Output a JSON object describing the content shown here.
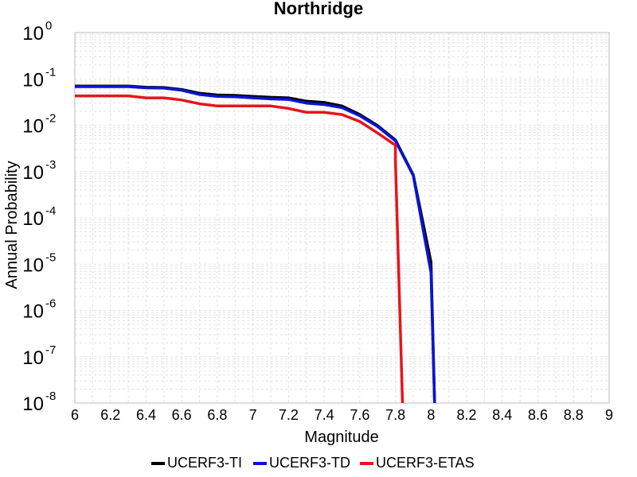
{
  "chart_data": {
    "type": "line",
    "title": "Northridge",
    "xlabel": "Magnitude",
    "ylabel": "Annual Probability",
    "xlim": [
      6,
      9
    ],
    "ylim": [
      1e-08,
      1
    ],
    "yscale": "log",
    "grid": true,
    "legend_position": "bottom",
    "x_ticks": [
      "6",
      "6.2",
      "6.4",
      "6.6",
      "6.8",
      "7",
      "7.2",
      "7.4",
      "7.6",
      "7.8",
      "8",
      "8.2",
      "8.4",
      "8.6",
      "8.8",
      "9"
    ],
    "y_ticks": [
      {
        "base": "10",
        "exp": "0"
      },
      {
        "base": "10",
        "exp": "-1"
      },
      {
        "base": "10",
        "exp": "-2"
      },
      {
        "base": "10",
        "exp": "-3"
      },
      {
        "base": "10",
        "exp": "-4"
      },
      {
        "base": "10",
        "exp": "-5"
      },
      {
        "base": "10",
        "exp": "-6"
      },
      {
        "base": "10",
        "exp": "-7"
      },
      {
        "base": "10",
        "exp": "-8"
      }
    ],
    "series": [
      {
        "name": "UCERF3-TI",
        "color": "#000000",
        "points": [
          [
            6.0,
            0.07
          ],
          [
            6.1,
            0.07
          ],
          [
            6.2,
            0.07
          ],
          [
            6.3,
            0.07
          ],
          [
            6.4,
            0.066
          ],
          [
            6.5,
            0.065
          ],
          [
            6.6,
            0.059
          ],
          [
            6.7,
            0.049
          ],
          [
            6.8,
            0.045
          ],
          [
            6.9,
            0.044
          ],
          [
            7.0,
            0.042
          ],
          [
            7.1,
            0.04
          ],
          [
            7.2,
            0.039
          ],
          [
            7.3,
            0.033
          ],
          [
            7.4,
            0.031
          ],
          [
            7.5,
            0.026
          ],
          [
            7.6,
            0.017
          ],
          [
            7.7,
            0.0098
          ],
          [
            7.8,
            0.0048
          ],
          [
            7.9,
            0.00085
          ],
          [
            8.0,
            1.1e-05
          ],
          [
            8.02,
            1e-08
          ]
        ]
      },
      {
        "name": "UCERF3-TD",
        "color": "#0a14d2",
        "points": [
          [
            6.0,
            0.068
          ],
          [
            6.1,
            0.068
          ],
          [
            6.2,
            0.068
          ],
          [
            6.3,
            0.068
          ],
          [
            6.4,
            0.064
          ],
          [
            6.5,
            0.063
          ],
          [
            6.6,
            0.057
          ],
          [
            6.7,
            0.046
          ],
          [
            6.8,
            0.042
          ],
          [
            6.9,
            0.041
          ],
          [
            7.0,
            0.039
          ],
          [
            7.1,
            0.037
          ],
          [
            7.2,
            0.036
          ],
          [
            7.3,
            0.03
          ],
          [
            7.4,
            0.028
          ],
          [
            7.5,
            0.024
          ],
          [
            7.6,
            0.016
          ],
          [
            7.7,
            0.0094
          ],
          [
            7.8,
            0.0046
          ],
          [
            7.9,
            0.00082
          ],
          [
            8.0,
            6.5e-06
          ],
          [
            8.02,
            1e-08
          ]
        ]
      },
      {
        "name": "UCERF3-ETAS",
        "color": "#e8141c",
        "points": [
          [
            6.0,
            0.043
          ],
          [
            6.1,
            0.043
          ],
          [
            6.2,
            0.043
          ],
          [
            6.3,
            0.043
          ],
          [
            6.4,
            0.039
          ],
          [
            6.5,
            0.039
          ],
          [
            6.6,
            0.035
          ],
          [
            6.7,
            0.029
          ],
          [
            6.8,
            0.026
          ],
          [
            6.9,
            0.026
          ],
          [
            7.0,
            0.026
          ],
          [
            7.1,
            0.026
          ],
          [
            7.2,
            0.023
          ],
          [
            7.3,
            0.019
          ],
          [
            7.4,
            0.019
          ],
          [
            7.5,
            0.017
          ],
          [
            7.6,
            0.012
          ],
          [
            7.7,
            0.0068
          ],
          [
            7.8,
            0.0037
          ],
          [
            7.8,
            0.0018
          ],
          [
            7.84,
            1e-08
          ]
        ]
      }
    ]
  }
}
